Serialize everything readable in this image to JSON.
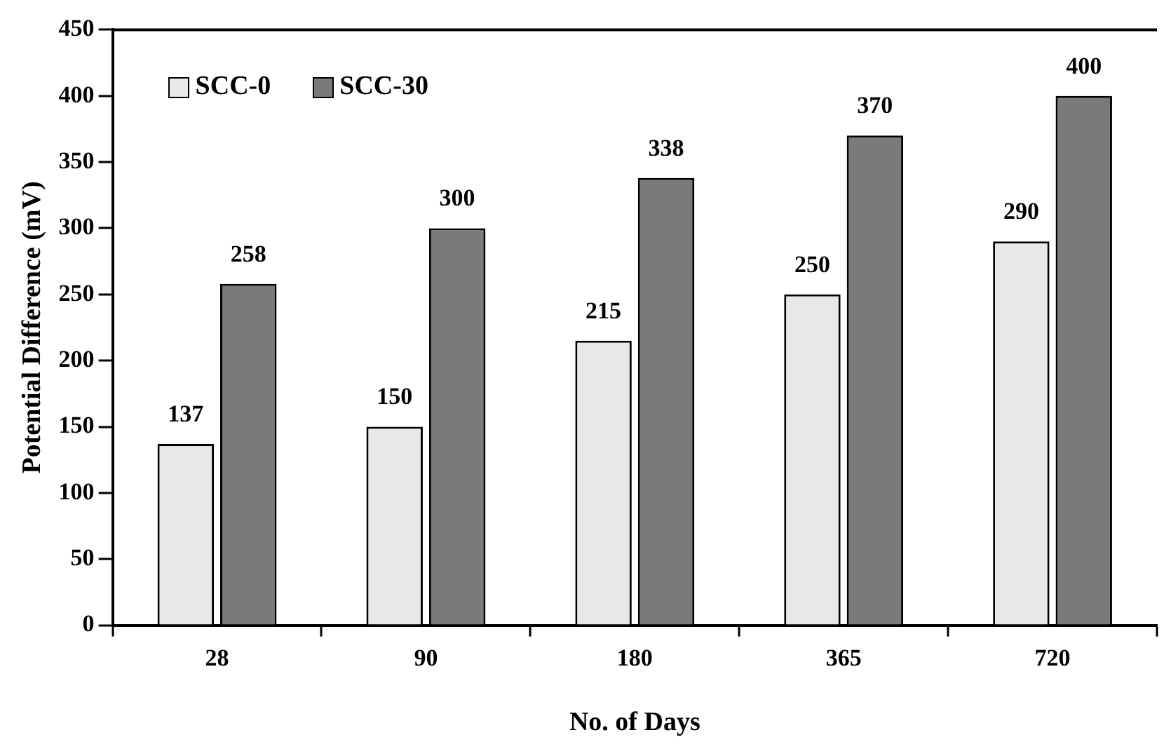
{
  "chart_data": {
    "type": "bar",
    "xlabel": "No. of Days",
    "ylabel": "Potential Difference (mV)",
    "categories": [
      "28",
      "90",
      "180",
      "365",
      "720"
    ],
    "series": [
      {
        "name": "SCC-0",
        "color": "#e8e8e8",
        "values": [
          137,
          150,
          215,
          250,
          290
        ]
      },
      {
        "name": "SCC-30",
        "color": "#7a7a7a",
        "values": [
          258,
          300,
          338,
          370,
          400
        ]
      }
    ],
    "ylim": [
      0,
      450
    ],
    "yticks": [
      0,
      50,
      100,
      150,
      200,
      250,
      300,
      350,
      400,
      450
    ],
    "grid": false,
    "legend": "top left",
    "data_labels": true
  }
}
